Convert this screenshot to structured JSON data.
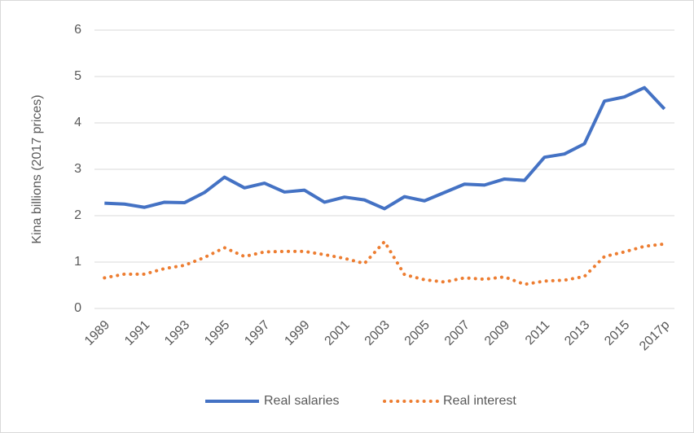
{
  "chart_data": {
    "type": "line",
    "y_label": "Kina billions (2017 prices)",
    "categories": [
      "1989",
      null,
      "1991",
      null,
      "1993",
      null,
      "1995",
      null,
      "1997",
      null,
      "1999",
      null,
      "2001",
      null,
      "2003",
      null,
      "2005",
      null,
      "2007",
      null,
      "2009",
      null,
      "2011",
      null,
      "2013",
      null,
      "2015",
      null,
      "2017p"
    ],
    "series": [
      {
        "name": "Real salaries",
        "color": "#4472c4",
        "line_style": "solid",
        "values": [
          2.27,
          2.25,
          2.18,
          2.29,
          2.28,
          2.5,
          2.83,
          2.6,
          2.7,
          2.51,
          2.55,
          2.29,
          2.4,
          2.34,
          2.15,
          2.41,
          2.32,
          2.5,
          2.68,
          2.66,
          2.79,
          2.76,
          3.26,
          3.33,
          3.55,
          4.47,
          4.56,
          4.76,
          4.3
        ]
      },
      {
        "name": "Real interest",
        "color": "#ed7d31",
        "line_style": "dotted",
        "values": [
          0.66,
          0.74,
          0.74,
          0.86,
          0.93,
          1.1,
          1.31,
          1.12,
          1.22,
          1.23,
          1.23,
          1.16,
          1.08,
          0.97,
          1.44,
          0.73,
          0.62,
          0.57,
          0.66,
          0.63,
          0.68,
          0.52,
          0.59,
          0.61,
          0.69,
          1.12,
          1.22,
          1.34,
          1.39
        ]
      }
    ],
    "ylim": [
      0,
      6
    ],
    "yticks": [
      0,
      1,
      2,
      3,
      4,
      5,
      6
    ],
    "grid": true,
    "legend": "bottom"
  }
}
